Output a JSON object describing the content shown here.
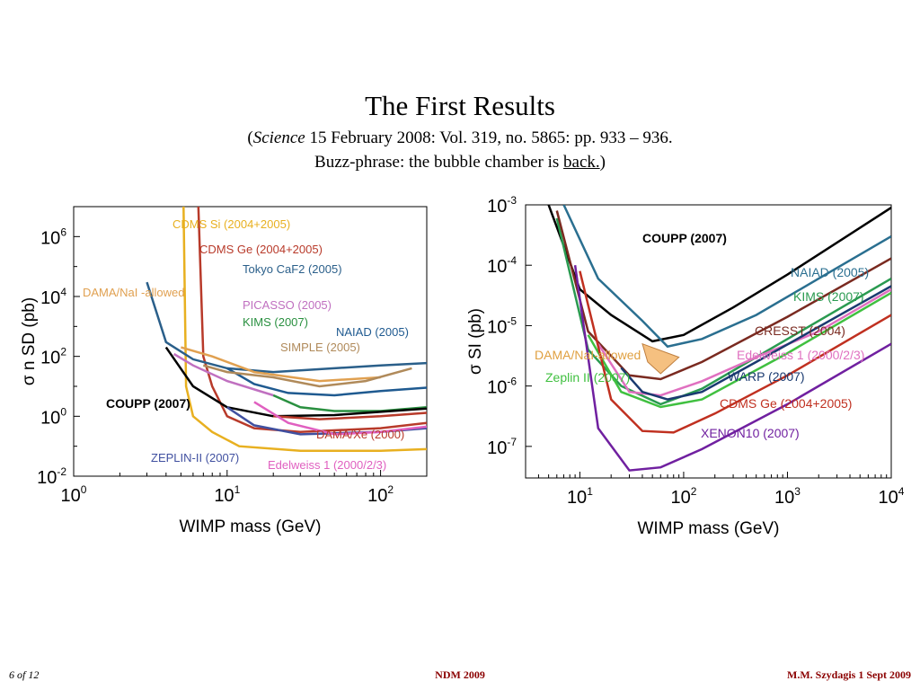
{
  "slide": {
    "title": "The First Results",
    "subtitle_open": "(",
    "subtitle_journal": "Science",
    "subtitle_rest": " 15 February 2008: Vol. 319, no. 5865: pp. 933 – 936.",
    "buzz_prefix": "Buzz-phrase: the bubble chamber is ",
    "buzz_link": "back.",
    "buzz_close": ")"
  },
  "footer": {
    "page": "6 of 12",
    "center": "NDM 2009",
    "right": "M.M. Szydagis   1  Sept 2009"
  },
  "chart_data": [
    {
      "type": "line",
      "xscale": "log",
      "yscale": "log",
      "xlim": [
        1,
        200
      ],
      "ylim": [
        0.01,
        10000000
      ],
      "xlabel": "WIMP mass (GeV)",
      "ylabel": "σ n SD (pb)",
      "xticks": [
        "10^0",
        "10^1",
        "10^2"
      ],
      "yticks": [
        "10^-2",
        "10^0",
        "10^2",
        "10^4",
        "10^6"
      ],
      "series": [
        {
          "name": "CDMS Si (2004+2005)",
          "color": "#e8b020",
          "x": [
            5.2,
            5.4,
            6,
            8,
            12,
            30,
            100,
            200
          ],
          "y": [
            10000000,
            10,
            1,
            0.3,
            0.1,
            0.07,
            0.07,
            0.08
          ]
        },
        {
          "name": "CDMS Ge (2004+2005)",
          "color": "#b83a2a",
          "x": [
            6.5,
            7,
            8,
            10,
            15,
            30,
            100,
            200
          ],
          "y": [
            10000000,
            100,
            10,
            1,
            0.4,
            0.3,
            0.4,
            0.6
          ]
        },
        {
          "name": "Tokyo CaF2 (2005)",
          "color": "#2a5f8a",
          "x": [
            3,
            4,
            6,
            10,
            20,
            50,
            100,
            200
          ],
          "y": [
            30000,
            300,
            80,
            40,
            30,
            40,
            50,
            60
          ]
        },
        {
          "name": "DAMA/NaI -allowed",
          "color": "#e0a050",
          "x": [
            5,
            8,
            15,
            40,
            100
          ],
          "y": [
            200,
            100,
            30,
            15,
            20
          ]
        },
        {
          "name": "PICASSO (2005)",
          "color": "#c070c0",
          "x": [
            4.5,
            6,
            10,
            20
          ],
          "y": [
            120,
            50,
            15,
            5
          ]
        },
        {
          "name": "KIMS (2007)",
          "color": "#2a9040",
          "x": [
            20,
            30,
            50,
            100,
            200
          ],
          "y": [
            5,
            2,
            1.5,
            1.5,
            2
          ]
        },
        {
          "name": "NAIAD (2005)",
          "color": "#1f5a90",
          "x": [
            10,
            15,
            25,
            50,
            100,
            200
          ],
          "y": [
            40,
            12,
            6,
            5,
            7,
            9
          ]
        },
        {
          "name": "SIMPLE (2005)",
          "color": "#b08a5a",
          "x": [
            7,
            10,
            20,
            40,
            80,
            160
          ],
          "y": [
            50,
            30,
            20,
            10,
            15,
            40
          ]
        },
        {
          "name": "COUPP (2007)",
          "color": "#000000",
          "x": [
            4,
            6,
            10,
            20,
            50,
            200
          ],
          "y": [
            200,
            10,
            2,
            1,
            1.1,
            1.8
          ]
        },
        {
          "name": "DAMA/Xe (2000)",
          "color": "#b83a2a",
          "x": [
            20,
            40,
            100,
            200
          ],
          "y": [
            1,
            0.8,
            1,
            1.3
          ]
        },
        {
          "name": "ZEPLIN-II (2007)",
          "color": "#4050a0",
          "x": [
            10,
            15,
            30,
            100,
            200
          ],
          "y": [
            2,
            0.5,
            0.25,
            0.3,
            0.4
          ]
        },
        {
          "name": "Edelweiss 1 (2000/2/3)",
          "color": "#e060c0",
          "x": [
            15,
            25,
            50,
            100,
            200
          ],
          "y": [
            3,
            0.6,
            0.25,
            0.3,
            0.45
          ]
        }
      ]
    },
    {
      "type": "line",
      "xscale": "log",
      "yscale": "log",
      "xlim": [
        3,
        10000
      ],
      "ylim": [
        3e-08,
        0.001
      ],
      "xlabel": "WIMP mass (GeV)",
      "ylabel": "σ SI (pb)",
      "xticks": [
        "10^1",
        "10^2",
        "10^3",
        "10^4"
      ],
      "yticks": [
        "10^-7",
        "10^-6",
        "10^-5",
        "10^-4",
        "10^-3"
      ],
      "series": [
        {
          "name": "COUPP (2007)",
          "color": "#000000",
          "x": [
            5,
            10,
            20,
            50,
            100,
            300,
            1000,
            10000
          ],
          "y": [
            0.001,
            4e-05,
            1.5e-05,
            5.5e-06,
            7e-06,
            2e-05,
            7e-05,
            0.0009
          ]
        },
        {
          "name": "NAIAD (2005)",
          "color": "#2a6f90",
          "x": [
            7,
            15,
            40,
            70,
            150,
            500,
            2000,
            10000
          ],
          "y": [
            0.001,
            6e-05,
            1.2e-05,
            4.5e-06,
            6e-06,
            1.5e-05,
            6e-05,
            0.0003
          ]
        },
        {
          "name": "KIMS (2007)",
          "color": "#2a9a50",
          "x": [
            6,
            12,
            25,
            60,
            150,
            1000,
            10000
          ],
          "y": [
            0.0006,
            4e-06,
            1e-06,
            5e-07,
            9e-07,
            6e-06,
            6e-05
          ]
        },
        {
          "name": "CRESST (2004)",
          "color": "#7a2a20",
          "x": [
            6,
            12,
            30,
            60,
            150,
            1000,
            10000
          ],
          "y": [
            0.0008,
            8e-06,
            1.5e-06,
            1.3e-06,
            2.5e-06,
            1.4e-05,
            0.00013
          ]
        },
        {
          "name": "Edelweiss 1 (2000/2/3)",
          "color": "#e070c0",
          "x": [
            15,
            30,
            60,
            150,
            500,
            2000,
            10000
          ],
          "y": [
            5e-06,
            8e-07,
            7e-07,
            1.2e-06,
            3e-06,
            8e-06,
            4e-05
          ]
        },
        {
          "name": "WARP (2007)",
          "color": "#1a3a70",
          "x": [
            25,
            40,
            70,
            150,
            500,
            10000
          ],
          "y": [
            2e-06,
            8e-07,
            6e-07,
            8e-07,
            2.5e-06,
            4.5e-05
          ]
        },
        {
          "name": "Zeplin II (2007)",
          "color": "#40c040",
          "x": [
            12,
            25,
            60,
            150,
            1000,
            10000
          ],
          "y": [
            7e-06,
            8e-07,
            4.5e-07,
            6e-07,
            3.5e-06,
            3.5e-05
          ]
        },
        {
          "name": "CDMS Ge (2004+2005)",
          "color": "#c03020",
          "x": [
            10,
            20,
            40,
            80,
            200,
            1000,
            10000
          ],
          "y": [
            8e-05,
            6e-07,
            1.8e-07,
            1.7e-07,
            3.5e-07,
            1.5e-06,
            1.5e-05
          ]
        },
        {
          "name": "XENON10 (2007)",
          "color": "#7020a0",
          "x": [
            9,
            15,
            30,
            60,
            150,
            1000,
            10000
          ],
          "y": [
            0.0001,
            2e-07,
            4e-08,
            4.5e-08,
            9e-08,
            5e-07,
            5e-06
          ]
        },
        {
          "name": "DAMA/NaI-allowed",
          "color": "#f5c080",
          "x": [
            40,
            90,
            60,
            45
          ],
          "y": [
            5e-06,
            3e-06,
            1.6e-06,
            2.5e-06
          ]
        }
      ]
    }
  ]
}
